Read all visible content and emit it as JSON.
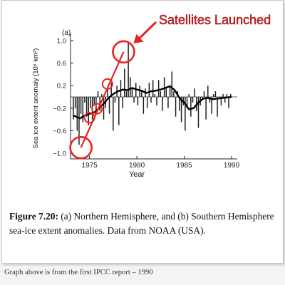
{
  "annotation": {
    "text": "Satellites Launched",
    "color": "#e8231f"
  },
  "caption": {
    "label": "Figure 7.20:",
    "text": "(a) Northern Hemisphere, and (b) Southern Hemisphere sea-ice extent anomalies. Data from NOAA (USA)."
  },
  "note": "Graph above is from the first IPCC report – 1990",
  "chart_data": {
    "type": "bar",
    "panel_label": "(a)",
    "title": "",
    "xlabel": "Year",
    "ylabel": "Sea ice extent anomaly (10⁶ km²)",
    "xlim": [
      1973,
      1990.6
    ],
    "ylim": [
      -1.1,
      1.05
    ],
    "xticks": [
      1975,
      1980,
      1985,
      1990
    ],
    "xtick_labels": [
      "1975",
      "1980",
      "1985",
      "1990"
    ],
    "yticks": [
      1.0,
      0.6,
      0.2,
      -0.2,
      -0.6,
      -1.0
    ],
    "ytick_labels": [
      "1.0",
      "0.6",
      "0.2",
      "−0.2",
      "−0.6",
      "−1.0"
    ],
    "bars": {
      "x": [
        1973.3,
        1973.5,
        1973.7,
        1973.9,
        1974.1,
        1974.3,
        1974.5,
        1974.7,
        1974.9,
        1975.1,
        1975.3,
        1975.5,
        1975.7,
        1975.9,
        1976.1,
        1976.3,
        1976.5,
        1976.7,
        1976.9,
        1977.1,
        1977.3,
        1977.5,
        1977.7,
        1977.9,
        1978.1,
        1978.3,
        1978.5,
        1978.7,
        1978.9,
        1979.1,
        1979.3,
        1979.5,
        1979.7,
        1979.9,
        1980.1,
        1980.3,
        1980.5,
        1980.7,
        1980.9,
        1981.1,
        1981.3,
        1981.5,
        1981.7,
        1981.9,
        1982.1,
        1982.3,
        1982.5,
        1982.7,
        1982.9,
        1983.1,
        1983.3,
        1983.5,
        1983.7,
        1983.9,
        1984.1,
        1984.3,
        1984.5,
        1984.7,
        1984.9,
        1985.1,
        1985.3,
        1985.5,
        1985.7,
        1985.9,
        1986.1,
        1986.3,
        1986.5,
        1986.7,
        1986.9,
        1987.1,
        1987.3,
        1987.5,
        1987.7,
        1987.9,
        1988.1,
        1988.3,
        1988.5,
        1988.7,
        1988.9,
        1989.1,
        1989.3,
        1989.5,
        1989.7,
        1989.9
      ],
      "values": [
        -0.4,
        -0.2,
        -0.6,
        -0.85,
        -0.3,
        -0.45,
        -0.1,
        -0.35,
        -0.5,
        -0.2,
        -0.4,
        -0.15,
        -0.3,
        0.1,
        -0.25,
        0.05,
        -0.4,
        -0.2,
        0.15,
        -0.3,
        0.25,
        -0.6,
        -0.1,
        0.2,
        -0.5,
        0.3,
        -0.2,
        0.5,
        0.1,
        0.95,
        0.35,
        0.15,
        -0.1,
        0.25,
        -0.15,
        0.2,
        0.1,
        -0.3,
        0.15,
        -0.2,
        0.25,
        -0.1,
        0.3,
        0.05,
        -0.15,
        0.3,
        0.1,
        -0.25,
        0.35,
        0.15,
        -0.2,
        0.2,
        0.45,
        0.1,
        -0.35,
        0.1,
        -0.25,
        -0.45,
        -0.15,
        -0.6,
        -0.2,
        0.05,
        -0.35,
        -0.1,
        0.15,
        -0.25,
        -0.55,
        -0.15,
        -0.05,
        0.1,
        -0.4,
        0.2,
        -0.1,
        -0.3,
        0.05,
        0.1,
        -0.35,
        0.0,
        -0.15,
        0.05,
        -0.1,
        0.05,
        -0.2,
        0.05
      ]
    },
    "smoothed": {
      "x": [
        1973.3,
        1974.0,
        1974.5,
        1975.0,
        1975.5,
        1976.0,
        1976.5,
        1977.0,
        1977.5,
        1978.0,
        1978.5,
        1979.0,
        1979.5,
        1980.0,
        1980.5,
        1981.0,
        1981.5,
        1982.0,
        1982.5,
        1983.0,
        1983.5,
        1984.0,
        1984.5,
        1985.0,
        1985.5,
        1986.0,
        1986.5,
        1987.0,
        1987.5,
        1988.0,
        1988.5,
        1989.0,
        1989.5,
        1990.0
      ],
      "values": [
        -0.33,
        -0.38,
        -0.33,
        -0.3,
        -0.28,
        -0.2,
        -0.12,
        -0.02,
        0.05,
        0.1,
        0.13,
        0.12,
        0.16,
        0.13,
        0.11,
        0.07,
        0.1,
        0.11,
        0.13,
        0.16,
        0.19,
        0.12,
        -0.02,
        -0.1,
        -0.22,
        -0.2,
        -0.1,
        -0.03,
        -0.02,
        -0.04,
        -0.03,
        -0.02,
        -0.01,
        0.0
      ]
    },
    "circles": [
      {
        "x": 1974.1,
        "y": -0.9
      },
      {
        "x": 1975.0,
        "y": -0.37
      },
      {
        "x": 1975.8,
        "y": -0.21
      },
      {
        "x": 1976.9,
        "y": 0.23
      },
      {
        "x": 1978.6,
        "y": 0.8
      }
    ]
  }
}
